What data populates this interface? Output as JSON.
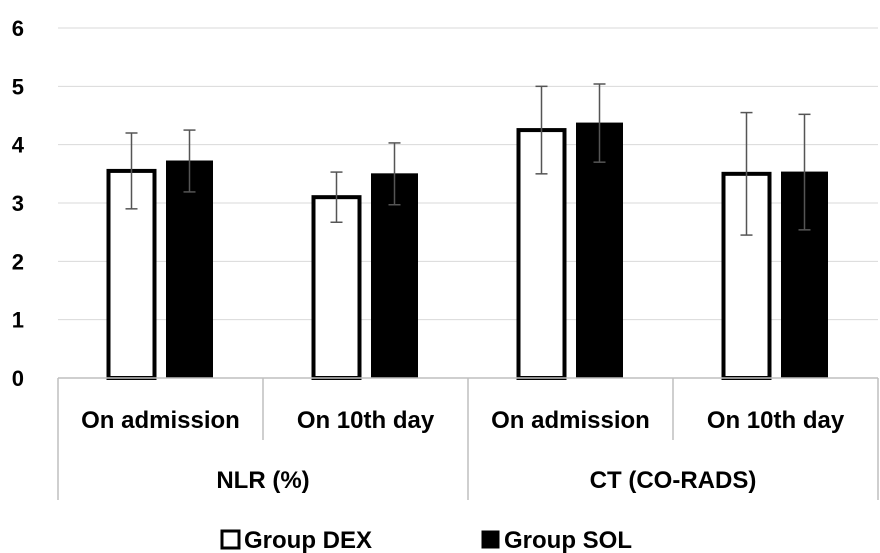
{
  "chart_data": {
    "type": "bar",
    "title": "",
    "xlabel": "",
    "ylabel": "",
    "ylim": [
      0,
      6
    ],
    "yticks": [
      "0",
      "1",
      "2",
      "3",
      "4",
      "5",
      "6"
    ],
    "grid": true,
    "legend_position": "bottom",
    "categories": [
      "On admission",
      "On 10th day",
      "On admission",
      "On 10th day"
    ],
    "groups": [
      {
        "label": "NLR (%)",
        "span": [
          0,
          1
        ]
      },
      {
        "label": "CT (CO-RADS)",
        "span": [
          2,
          3
        ]
      }
    ],
    "series": [
      {
        "name": "Group DEX",
        "color": "#ffffff",
        "values": [
          3.55,
          3.1,
          4.25,
          3.5
        ],
        "errors": [
          0.65,
          0.43,
          0.75,
          1.05
        ]
      },
      {
        "name": "Group SOL",
        "color": "#000000",
        "values": [
          3.72,
          3.5,
          4.37,
          3.53
        ],
        "errors": [
          0.53,
          0.53,
          0.67,
          0.99
        ]
      }
    ]
  }
}
